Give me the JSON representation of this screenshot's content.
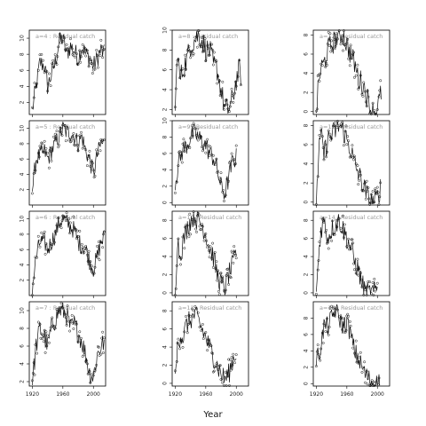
{
  "chart_data": {
    "type": "line",
    "xlabel": "Year",
    "xlim": [
      1916,
      2016
    ],
    "xticks": [
      1920,
      1960,
      2000
    ],
    "panels": [
      {
        "label": "a=4",
        "title": "a=4 : Residual catch",
        "ylim": [
          0.5,
          11
        ],
        "yticks": [
          2,
          4,
          6,
          8,
          10
        ],
        "key": [
          [
            1920,
            1
          ],
          [
            1925,
            4
          ],
          [
            1930,
            7
          ],
          [
            1936,
            6.5
          ],
          [
            1940,
            4
          ],
          [
            1945,
            5.5
          ],
          [
            1950,
            7
          ],
          [
            1955,
            9.5
          ],
          [
            1960,
            10
          ],
          [
            1965,
            8
          ],
          [
            1970,
            9
          ],
          [
            1975,
            8.5
          ],
          [
            1980,
            7.5
          ],
          [
            1985,
            9
          ],
          [
            1990,
            8
          ],
          [
            1995,
            7.5
          ],
          [
            2000,
            6.5
          ],
          [
            2005,
            7.5
          ],
          [
            2010,
            8.5
          ],
          [
            2014,
            8
          ]
        ]
      },
      {
        "label": "a=5",
        "title": "a=5 : Residual catch",
        "ylim": [
          0,
          11
        ],
        "yticks": [
          2,
          4,
          6,
          8,
          10
        ],
        "key": [
          [
            1920,
            2
          ],
          [
            1925,
            6
          ],
          [
            1930,
            6.5
          ],
          [
            1936,
            7
          ],
          [
            1940,
            6
          ],
          [
            1945,
            7
          ],
          [
            1950,
            8
          ],
          [
            1955,
            9
          ],
          [
            1960,
            10
          ],
          [
            1965,
            9.5
          ],
          [
            1970,
            9.5
          ],
          [
            1975,
            9
          ],
          [
            1980,
            8
          ],
          [
            1985,
            9
          ],
          [
            1990,
            7
          ],
          [
            1995,
            6
          ],
          [
            2000,
            4
          ],
          [
            2005,
            6.5
          ],
          [
            2010,
            8
          ],
          [
            2014,
            8
          ]
        ]
      },
      {
        "label": "a=6",
        "title": "a=6 : Residual catch",
        "ylim": [
          0,
          11
        ],
        "yticks": [
          2,
          4,
          6,
          8,
          10
        ],
        "key": [
          [
            1920,
            1
          ],
          [
            1925,
            5
          ],
          [
            1930,
            7
          ],
          [
            1936,
            7
          ],
          [
            1940,
            6
          ],
          [
            1945,
            7
          ],
          [
            1950,
            8
          ],
          [
            1955,
            9.5
          ],
          [
            1960,
            10
          ],
          [
            1965,
            9.5
          ],
          [
            1970,
            9
          ],
          [
            1975,
            8.5
          ],
          [
            1980,
            7
          ],
          [
            1985,
            6.5
          ],
          [
            1990,
            6
          ],
          [
            1995,
            4.5
          ],
          [
            2000,
            3.5
          ],
          [
            2005,
            5
          ],
          [
            2010,
            7
          ],
          [
            2014,
            7.5
          ]
        ]
      },
      {
        "label": "a=7",
        "title": "a=7 : Residual catch",
        "ylim": [
          1.5,
          11
        ],
        "yticks": [
          2,
          4,
          6,
          8,
          10
        ],
        "key": [
          [
            1920,
            2
          ],
          [
            1925,
            6
          ],
          [
            1930,
            8
          ],
          [
            1936,
            7
          ],
          [
            1940,
            6
          ],
          [
            1945,
            8
          ],
          [
            1950,
            9
          ],
          [
            1955,
            10
          ],
          [
            1960,
            10
          ],
          [
            1965,
            9.5
          ],
          [
            1970,
            8
          ],
          [
            1975,
            8.5
          ],
          [
            1980,
            7.5
          ],
          [
            1985,
            6.5
          ],
          [
            1990,
            5
          ],
          [
            1995,
            3
          ],
          [
            2000,
            2.5
          ],
          [
            2005,
            5
          ],
          [
            2010,
            6
          ],
          [
            2014,
            6.5
          ]
        ]
      },
      {
        "label": "a=8",
        "title": "a=8 : Residual catch",
        "ylim": [
          1.5,
          10
        ],
        "yticks": [
          2,
          4,
          6,
          8,
          10
        ],
        "key": [
          [
            1920,
            2
          ],
          [
            1923,
            8
          ],
          [
            1926,
            5
          ],
          [
            1930,
            6
          ],
          [
            1935,
            7
          ],
          [
            1940,
            8.5
          ],
          [
            1945,
            9
          ],
          [
            1950,
            9.5
          ],
          [
            1955,
            9
          ],
          [
            1960,
            8
          ],
          [
            1965,
            8
          ],
          [
            1970,
            6.5
          ],
          [
            1975,
            6
          ],
          [
            1980,
            4
          ],
          [
            1985,
            2
          ],
          [
            1990,
            2
          ],
          [
            1995,
            3
          ],
          [
            2000,
            5
          ],
          [
            2004,
            6
          ],
          [
            2006,
            5.5
          ]
        ]
      },
      {
        "label": "a=9",
        "title": "a=9 : Residual catch",
        "ylim": [
          -0.3,
          10
        ],
        "yticks": [
          0,
          2,
          4,
          6,
          8,
          10
        ],
        "key": [
          [
            1920,
            2.5
          ],
          [
            1925,
            5
          ],
          [
            1930,
            6.5
          ],
          [
            1935,
            7
          ],
          [
            1940,
            8
          ],
          [
            1945,
            8.5
          ],
          [
            1950,
            8
          ],
          [
            1955,
            7.5
          ],
          [
            1960,
            7
          ],
          [
            1965,
            6
          ],
          [
            1970,
            5.5
          ],
          [
            1975,
            4
          ],
          [
            1980,
            2
          ],
          [
            1985,
            1
          ],
          [
            1990,
            3
          ],
          [
            1995,
            5
          ],
          [
            2000,
            5.5
          ]
        ]
      },
      {
        "label": "a=10",
        "title": "a=10 : Residual catch",
        "ylim": [
          -0.3,
          9
        ],
        "yticks": [
          0,
          2,
          4,
          6,
          8
        ],
        "key": [
          [
            1920,
            0
          ],
          [
            1923,
            6
          ],
          [
            1926,
            4
          ],
          [
            1930,
            5.5
          ],
          [
            1935,
            7
          ],
          [
            1940,
            8
          ],
          [
            1945,
            8.5
          ],
          [
            1950,
            8
          ],
          [
            1955,
            7.5
          ],
          [
            1960,
            6.5
          ],
          [
            1965,
            5
          ],
          [
            1970,
            4
          ],
          [
            1975,
            2
          ],
          [
            1980,
            1
          ],
          [
            1985,
            0.5
          ],
          [
            1990,
            2
          ],
          [
            1995,
            3
          ],
          [
            2000,
            4.5
          ]
        ]
      },
      {
        "label": "a=11",
        "title": "a=11 : Residual catch",
        "ylim": [
          -0.3,
          9
        ],
        "yticks": [
          0,
          2,
          4,
          6,
          8
        ],
        "key": [
          [
            1920,
            0
          ],
          [
            1923,
            4
          ],
          [
            1927,
            5.5
          ],
          [
            1930,
            5
          ],
          [
            1935,
            6.5
          ],
          [
            1940,
            7
          ],
          [
            1945,
            7.5
          ],
          [
            1950,
            7
          ],
          [
            1955,
            6
          ],
          [
            1960,
            5
          ],
          [
            1965,
            4
          ],
          [
            1970,
            3
          ],
          [
            1975,
            2
          ],
          [
            1980,
            1
          ],
          [
            1985,
            0.5
          ],
          [
            1990,
            1
          ],
          [
            1995,
            2.5
          ],
          [
            2000,
            3.5
          ]
        ]
      },
      {
        "label": "a=12",
        "title": "a=12 : Residual catch",
        "ylim": [
          -0.3,
          8.5
        ],
        "yticks": [
          0,
          2,
          4,
          6,
          8
        ],
        "key": [
          [
            1920,
            0
          ],
          [
            1923,
            3
          ],
          [
            1926,
            4.5
          ],
          [
            1930,
            5
          ],
          [
            1935,
            6.5
          ],
          [
            1940,
            7
          ],
          [
            1945,
            7.5
          ],
          [
            1950,
            8
          ],
          [
            1955,
            8
          ],
          [
            1960,
            7
          ],
          [
            1965,
            6
          ],
          [
            1970,
            5
          ],
          [
            1975,
            3.5
          ],
          [
            1980,
            3
          ],
          [
            1985,
            2
          ],
          [
            1990,
            0.5
          ],
          [
            1993,
            0
          ],
          [
            1998,
            0
          ],
          [
            2002,
            1
          ],
          [
            2005,
            2
          ]
        ]
      },
      {
        "label": "a=13",
        "title": "a=13 : Residual catch",
        "ylim": [
          -0.3,
          8.5
        ],
        "yticks": [
          0,
          2,
          4,
          6,
          8
        ],
        "key": [
          [
            1920,
            0
          ],
          [
            1923,
            5
          ],
          [
            1926,
            7
          ],
          [
            1930,
            5
          ],
          [
            1935,
            6.5
          ],
          [
            1940,
            7
          ],
          [
            1945,
            7.5
          ],
          [
            1950,
            8
          ],
          [
            1955,
            7.5
          ],
          [
            1960,
            6.5
          ],
          [
            1965,
            5.5
          ],
          [
            1970,
            4
          ],
          [
            1975,
            3
          ],
          [
            1980,
            2
          ],
          [
            1985,
            1
          ],
          [
            1990,
            0
          ],
          [
            1995,
            0
          ],
          [
            2000,
            0.5
          ],
          [
            2004,
            1.5
          ]
        ]
      },
      {
        "label": "a=14",
        "title": "a=14 : Residual catch",
        "ylim": [
          -0.3,
          9
        ],
        "yticks": [
          0,
          2,
          4,
          6,
          8
        ],
        "key": [
          [
            1920,
            0
          ],
          [
            1923,
            4
          ],
          [
            1926,
            7
          ],
          [
            1930,
            8
          ],
          [
            1935,
            6
          ],
          [
            1940,
            7
          ],
          [
            1945,
            7.5
          ],
          [
            1950,
            8
          ],
          [
            1955,
            7
          ],
          [
            1960,
            6
          ],
          [
            1965,
            5
          ],
          [
            1970,
            3.5
          ],
          [
            1975,
            2.5
          ],
          [
            1980,
            1
          ],
          [
            1985,
            0
          ],
          [
            1995,
            0
          ],
          [
            2000,
            0.5
          ]
        ]
      },
      {
        "label": "a=15",
        "title": "a=15 : Residual catch",
        "ylim": [
          -0.3,
          10
        ],
        "yticks": [
          0,
          2,
          4,
          6,
          8
        ],
        "key": [
          [
            1920,
            3
          ],
          [
            1925,
            4
          ],
          [
            1930,
            7
          ],
          [
            1935,
            7
          ],
          [
            1940,
            8
          ],
          [
            1945,
            9
          ],
          [
            1950,
            8
          ],
          [
            1955,
            7
          ],
          [
            1960,
            7.5
          ],
          [
            1965,
            6
          ],
          [
            1970,
            4
          ],
          [
            1975,
            3
          ],
          [
            1980,
            2
          ],
          [
            1985,
            1
          ],
          [
            1990,
            0.5
          ],
          [
            1995,
            0
          ],
          [
            2000,
            0
          ],
          [
            2003,
            0.5
          ]
        ]
      }
    ]
  }
}
